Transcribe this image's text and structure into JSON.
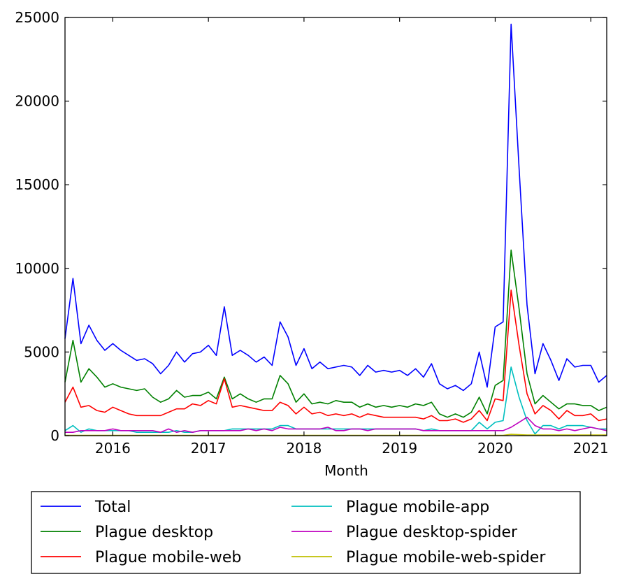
{
  "chart_data": {
    "type": "line",
    "title": "",
    "xlabel": "Month",
    "ylabel": "",
    "ylim": [
      0,
      25000
    ],
    "xlim": [
      "2015-07",
      "2021-03"
    ],
    "grid": false,
    "legend_placement": "below",
    "yticks": [
      "0",
      "5000",
      "10000",
      "15000",
      "20000",
      "25000"
    ],
    "xticks": [
      {
        "label": "2016",
        "date": "2016-01"
      },
      {
        "label": "2017",
        "date": "2017-01"
      },
      {
        "label": "2018",
        "date": "2018-01"
      },
      {
        "label": "2019",
        "date": "2019-01"
      },
      {
        "label": "2020",
        "date": "2020-01"
      },
      {
        "label": "2021",
        "date": "2021-01"
      }
    ],
    "x": [
      "2015-07",
      "2015-08",
      "2015-09",
      "2015-10",
      "2015-11",
      "2015-12",
      "2016-01",
      "2016-02",
      "2016-03",
      "2016-04",
      "2016-05",
      "2016-06",
      "2016-07",
      "2016-08",
      "2016-09",
      "2016-10",
      "2016-11",
      "2016-12",
      "2017-01",
      "2017-02",
      "2017-03",
      "2017-04",
      "2017-05",
      "2017-06",
      "2017-07",
      "2017-08",
      "2017-09",
      "2017-10",
      "2017-11",
      "2017-12",
      "2018-01",
      "2018-02",
      "2018-03",
      "2018-04",
      "2018-05",
      "2018-06",
      "2018-07",
      "2018-08",
      "2018-09",
      "2018-10",
      "2018-11",
      "2018-12",
      "2019-01",
      "2019-02",
      "2019-03",
      "2019-04",
      "2019-05",
      "2019-06",
      "2019-07",
      "2019-08",
      "2019-09",
      "2019-10",
      "2019-11",
      "2019-12",
      "2020-01",
      "2020-02",
      "2020-03",
      "2020-04",
      "2020-05",
      "2020-06",
      "2020-07",
      "2020-08",
      "2020-09",
      "2020-10",
      "2020-11",
      "2020-12",
      "2021-01",
      "2021-02",
      "2021-03"
    ],
    "series": [
      {
        "name": "Total",
        "color": "#0000ff",
        "values": [
          5800,
          9400,
          5500,
          6600,
          5700,
          5100,
          5500,
          5100,
          4800,
          4500,
          4600,
          4300,
          3700,
          4200,
          5000,
          4400,
          4900,
          5000,
          5400,
          4800,
          7700,
          4800,
          5100,
          4800,
          4400,
          4700,
          4200,
          6800,
          5900,
          4200,
          5200,
          4000,
          4400,
          4000,
          4100,
          4200,
          4100,
          3600,
          4200,
          3800,
          3900,
          3800,
          3900,
          3600,
          4000,
          3500,
          4300,
          3100,
          2800,
          3000,
          2700,
          3100,
          5000,
          2900,
          6500,
          6800,
          24600,
          16000,
          7800,
          3700,
          5500,
          4500,
          3300,
          4600,
          4100,
          4200,
          4200,
          3200,
          3600
        ]
      },
      {
        "name": "Plague desktop",
        "color": "#008000",
        "values": [
          3200,
          5700,
          3200,
          4000,
          3500,
          2900,
          3100,
          2900,
          2800,
          2700,
          2800,
          2300,
          2000,
          2200,
          2700,
          2300,
          2400,
          2400,
          2600,
          2200,
          3500,
          2200,
          2500,
          2200,
          2000,
          2200,
          2200,
          3600,
          3100,
          2000,
          2500,
          1900,
          2000,
          1900,
          2100,
          2000,
          2000,
          1700,
          1900,
          1700,
          1800,
          1700,
          1800,
          1700,
          1900,
          1800,
          2000,
          1300,
          1100,
          1300,
          1100,
          1400,
          2300,
          1300,
          3000,
          3300,
          11100,
          7600,
          3700,
          1900,
          2400,
          2000,
          1600,
          1900,
          1900,
          1800,
          1800,
          1500,
          1700
        ]
      },
      {
        "name": "Plague mobile-web",
        "color": "#ff0000",
        "values": [
          2000,
          2900,
          1700,
          1800,
          1500,
          1400,
          1700,
          1500,
          1300,
          1200,
          1200,
          1200,
          1200,
          1400,
          1600,
          1600,
          1900,
          1800,
          2100,
          1900,
          3400,
          1700,
          1800,
          1700,
          1600,
          1500,
          1500,
          2000,
          1800,
          1300,
          1700,
          1300,
          1400,
          1200,
          1300,
          1200,
          1300,
          1100,
          1300,
          1200,
          1100,
          1100,
          1100,
          1100,
          1100,
          1000,
          1200,
          900,
          900,
          1000,
          800,
          1000,
          1500,
          900,
          2200,
          2100,
          8700,
          5400,
          2500,
          1300,
          1800,
          1500,
          1000,
          1500,
          1200,
          1200,
          1300,
          900,
          1000
        ]
      },
      {
        "name": "Plague mobile-app",
        "color": "#00bfbf",
        "values": [
          300,
          600,
          200,
          400,
          300,
          300,
          300,
          300,
          300,
          200,
          200,
          200,
          200,
          200,
          300,
          200,
          200,
          300,
          300,
          300,
          300,
          400,
          400,
          400,
          400,
          400,
          400,
          600,
          600,
          400,
          400,
          400,
          400,
          400,
          400,
          400,
          400,
          400,
          400,
          400,
          400,
          400,
          400,
          400,
          400,
          300,
          400,
          300,
          300,
          300,
          300,
          300,
          800,
          400,
          800,
          900,
          4100,
          2300,
          900,
          100,
          600,
          600,
          400,
          600,
          600,
          600,
          500,
          400,
          400
        ]
      },
      {
        "name": "Plague desktop-spider",
        "color": "#bf00bf",
        "values": [
          200,
          200,
          300,
          300,
          300,
          300,
          400,
          300,
          300,
          300,
          300,
          300,
          200,
          400,
          200,
          300,
          200,
          300,
          300,
          300,
          300,
          300,
          300,
          400,
          300,
          400,
          300,
          500,
          400,
          400,
          400,
          400,
          400,
          500,
          300,
          300,
          400,
          400,
          300,
          400,
          400,
          400,
          400,
          400,
          400,
          300,
          300,
          300,
          300,
          300,
          300,
          300,
          300,
          300,
          300,
          300,
          500,
          800,
          1100,
          600,
          400,
          400,
          300,
          400,
          300,
          400,
          500,
          400,
          300
        ]
      },
      {
        "name": "Plague mobile-web-spider",
        "color": "#bfbf00",
        "values": [
          20,
          20,
          20,
          20,
          20,
          20,
          20,
          20,
          20,
          20,
          20,
          20,
          20,
          20,
          20,
          20,
          20,
          20,
          20,
          20,
          20,
          20,
          20,
          20,
          20,
          20,
          20,
          20,
          20,
          20,
          20,
          20,
          20,
          20,
          20,
          20,
          20,
          20,
          20,
          20,
          20,
          20,
          20,
          20,
          20,
          20,
          20,
          20,
          20,
          20,
          20,
          20,
          20,
          20,
          20,
          20,
          80,
          60,
          40,
          40,
          40,
          40,
          40,
          40,
          40,
          40,
          40,
          40,
          40
        ]
      }
    ]
  }
}
